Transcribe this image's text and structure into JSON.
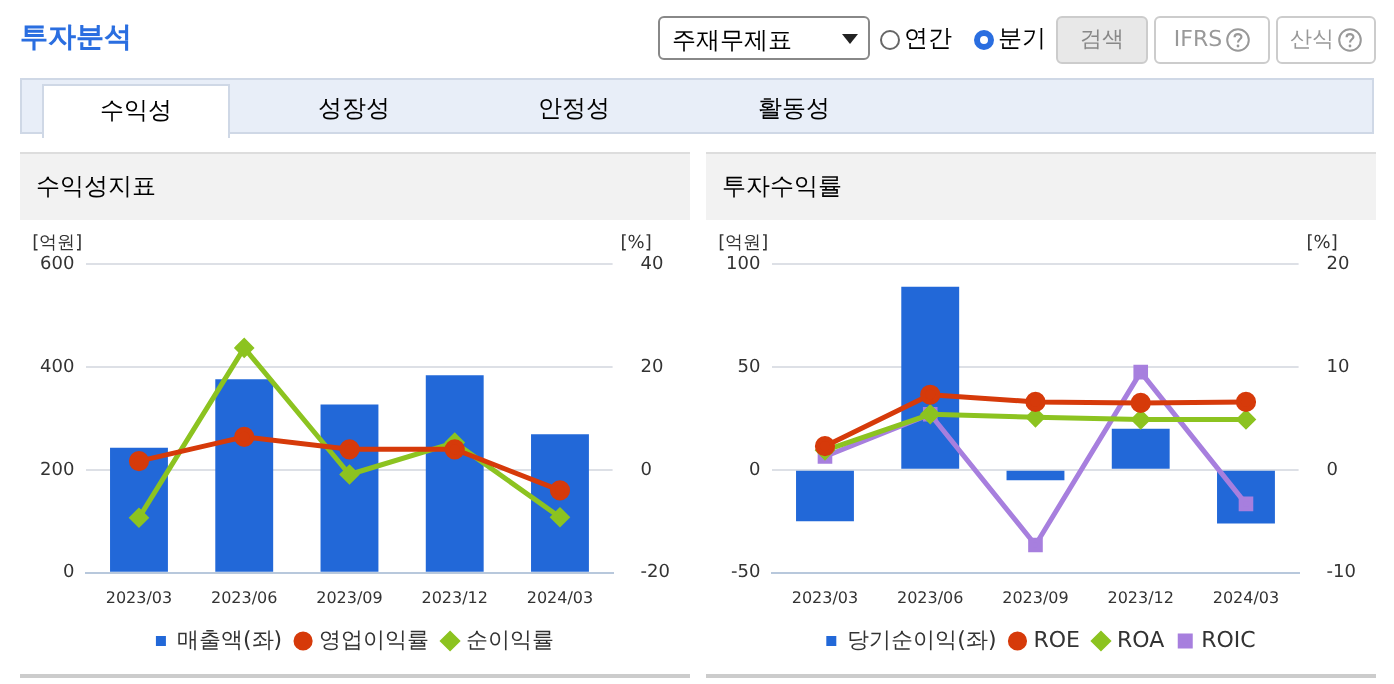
{
  "chart_data": [
    {
      "type": "bar",
      "title": "수익성지표",
      "ylabel": "[억원]",
      "y2label": "[%]",
      "annotations": [
        "투자분석",
        "주재무제표",
        "연간",
        "분기",
        "검색",
        "IFRS",
        "산식",
        "수익성",
        "성장성",
        "안정성",
        "활동성"
      ],
      "categories": [
        "2023/03",
        "2023/06",
        "2023/09",
        "2023/12",
        "2024/03"
      ],
      "series": [
        {
          "name": "매출액(좌)",
          "color": "#2268d8",
          "values": [
            243,
            376,
            327,
            384,
            269
          ]
        },
        {
          "name": "영업이익률",
          "type": "line",
          "axis": "y2",
          "color": "#d63a0a",
          "marker": "circle",
          "values": [
            1.7,
            6.4,
            4.0,
            4.0,
            -4.0
          ]
        },
        {
          "name": "순이익률",
          "type": "line",
          "axis": "y2",
          "color": "#8cc320",
          "marker": "diamond",
          "values": [
            -9.3,
            23.7,
            -0.9,
            5.3,
            -9.2
          ]
        }
      ],
      "ylim": [
        0,
        600
      ],
      "yticks": [
        0,
        200,
        400,
        600
      ],
      "y2lim": [
        -20,
        40
      ],
      "y2ticks": [
        -20,
        0,
        20,
        40
      ],
      "grid": "y",
      "legend": "bottom"
    },
    {
      "type": "bar",
      "title": "투자수익률",
      "ylabel": "[억원]",
      "y2label": "[%]",
      "categories": [
        "2023/03",
        "2023/06",
        "2023/09",
        "2023/12",
        "2024/03"
      ],
      "series": [
        {
          "name": "당기순이익(좌)",
          "color": "#2268d8",
          "values": [
            -25,
            89,
            -5,
            20,
            -26
          ]
        },
        {
          "name": "ROE",
          "type": "line",
          "axis": "y2",
          "color": "#d63a0a",
          "marker": "circle",
          "values": [
            2.3,
            7.3,
            6.6,
            6.5,
            6.6
          ]
        },
        {
          "name": "ROA",
          "type": "line",
          "axis": "y2",
          "color": "#8cc320",
          "marker": "diamond",
          "values": [
            1.9,
            5.4,
            5.1,
            4.9,
            4.9
          ]
        },
        {
          "name": "ROIC",
          "type": "line",
          "axis": "y2",
          "color": "#a77fde",
          "marker": "square",
          "values": [
            1.3,
            5.4,
            -7.3,
            9.5,
            -3.3
          ]
        }
      ],
      "ylim": [
        -50,
        100
      ],
      "yticks": [
        -50,
        0,
        50,
        100
      ],
      "y2lim": [
        -10,
        20
      ],
      "y2ticks": [
        -10,
        0,
        10,
        20
      ],
      "grid": "y",
      "legend": "bottom"
    }
  ]
}
